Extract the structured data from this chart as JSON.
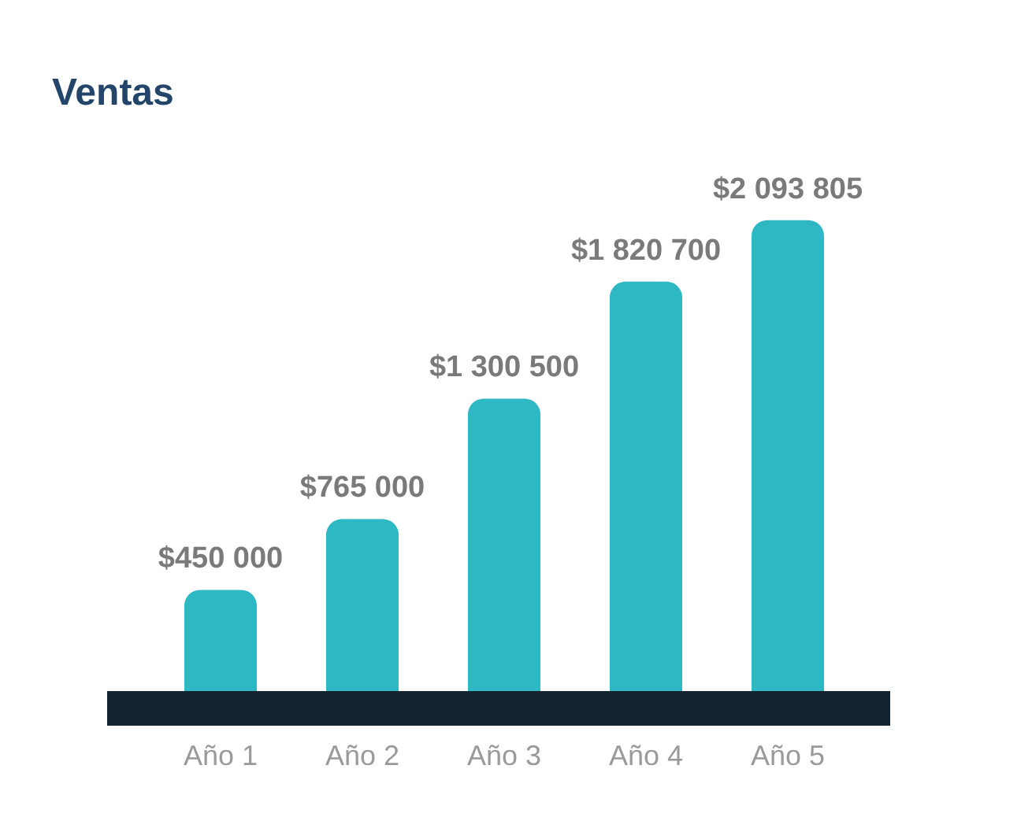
{
  "chart_data": {
    "type": "bar",
    "title": "Ventas",
    "categories": [
      "Año 1",
      "Año 2",
      "Año 3",
      "Año 4",
      "Año 5"
    ],
    "values": [
      450000,
      765000,
      1300500,
      1820700,
      2093805
    ],
    "value_labels": [
      "$450 000",
      "$765 000",
      "$1 300 500",
      "$1 820 700",
      "$2 093 805"
    ],
    "color": "#2eb8c4"
  }
}
